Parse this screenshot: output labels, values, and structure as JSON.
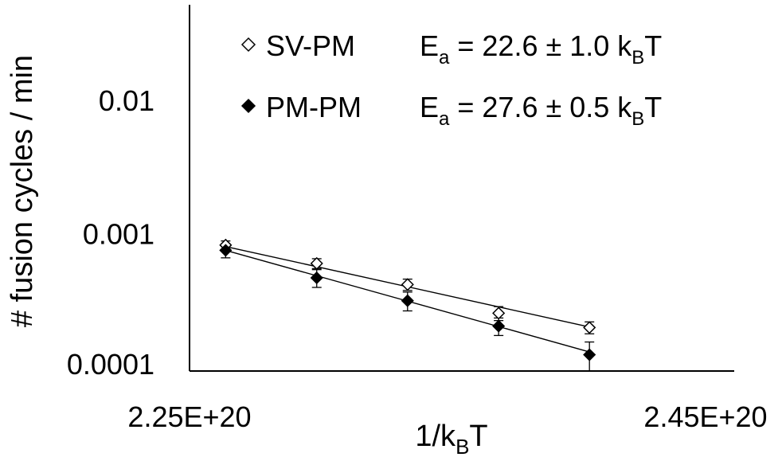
{
  "chart_data": {
    "type": "scatter",
    "ylabel": "# fusion cycles / min",
    "xlabel_main": "1/k",
    "xlabel_sub": "B",
    "xlabel_tail": "T",
    "x_scale": "linear",
    "y_scale": "log",
    "xlim": [
      2.25e+20,
      2.45e+20
    ],
    "ylim": [
      0.0001,
      0.05
    ],
    "x_tick_labels": [
      {
        "value": 2.25e+20,
        "label": "2.25E+20"
      },
      {
        "value": 2.45e+20,
        "label": "2.45E+20"
      }
    ],
    "y_tick_labels": [
      {
        "value": 0.0001,
        "label": "0.0001"
      },
      {
        "value": 0.001,
        "label": "0.001"
      },
      {
        "value": 0.01,
        "label": "0.01"
      }
    ],
    "grid": false,
    "legend_position": "top-left",
    "series": [
      {
        "name": "SV-PM",
        "marker": "open-diamond",
        "x": [
          2.264e+20,
          2.2993e+20,
          2.3345e+20,
          2.3698e+20,
          2.405e+20
        ],
        "y": [
          0.00081,
          0.00059,
          0.00041,
          0.00025,
          0.000195
        ],
        "error": [
          6e-05,
          5e-05,
          4e-05,
          3e-05,
          2e-05
        ],
        "fit": [
          [
            2.264e+20,
            0.00079
          ],
          [
            2.405e+20,
            0.000197
          ]
        ],
        "annotation": {
          "prefix": "E",
          "sub": "a",
          "mid": " = 22.6 ± 1.0 k",
          "sub2": "B",
          "suffix": "T"
        }
      },
      {
        "name": "PM-PM",
        "marker": "filled-diamond",
        "x": [
          2.264e+20,
          2.2993e+20,
          2.3345e+20,
          2.3698e+20,
          2.405e+20
        ],
        "y": [
          0.00074,
          0.00046,
          0.00031,
          0.0002,
          0.000122
        ],
        "error": [
          9e-05,
          7e-05,
          5e-05,
          3e-05,
          3e-05
        ],
        "fit": [
          [
            2.264e+20,
            0.00074
          ],
          [
            2.405e+20,
            0.000128
          ]
        ],
        "annotation": {
          "prefix": "E",
          "sub": "a",
          "mid": " = 27.6 ± 0.5 k",
          "sub2": "B",
          "suffix": "T"
        }
      }
    ]
  }
}
